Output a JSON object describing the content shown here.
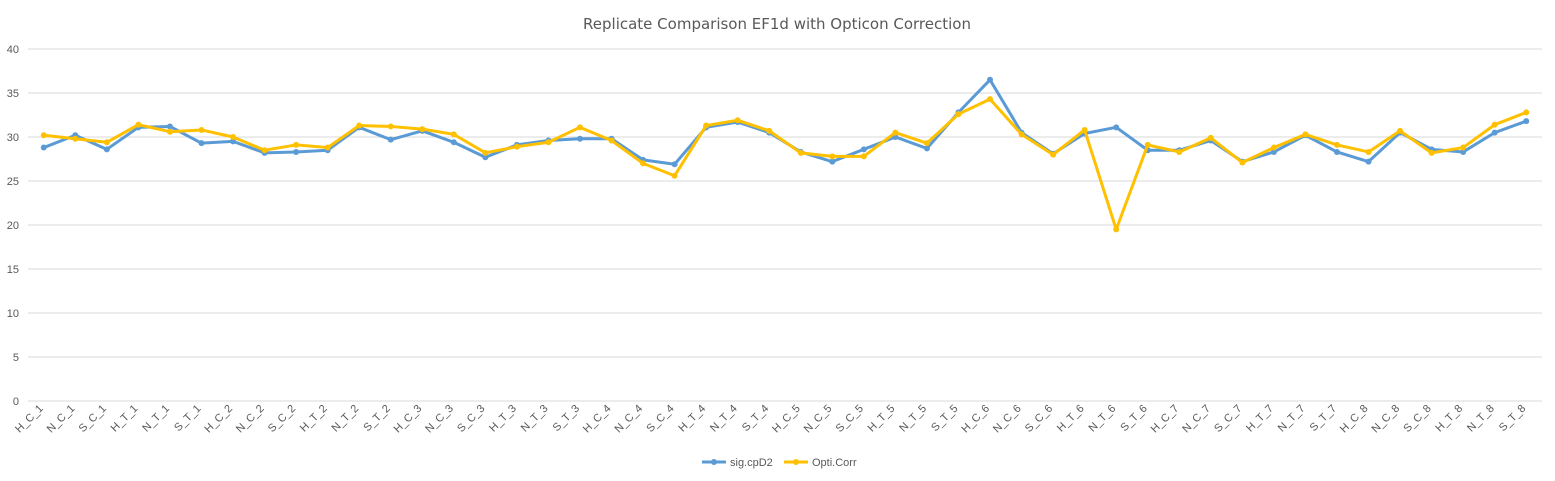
{
  "chart_data": {
    "type": "line",
    "title": "Replicate Comparison EF1d with Opticon Correction",
    "xlabel": "",
    "ylabel": "",
    "ylim": [
      0,
      40
    ],
    "yticks": [
      0,
      5,
      10,
      15,
      20,
      25,
      30,
      35,
      40
    ],
    "grid": true,
    "legend_position": "bottom",
    "categories": [
      "H_C_1",
      "N_C_1",
      "S_C_1",
      "H_T_1",
      "N_T_1",
      "S_T_1",
      "H_C_2",
      "N_C_2",
      "S_C_2",
      "H_T_2",
      "N_T_2",
      "S_T_2",
      "H_C_3",
      "N_C_3",
      "S_C_3",
      "H_T_3",
      "N_T_3",
      "S_T_3",
      "H_C_4",
      "N_C_4",
      "S_C_4",
      "H_T_4",
      "N_T_4",
      "S_T_4",
      "H_C_5",
      "N_C_5",
      "S_C_5",
      "H_T_5",
      "N_T_5",
      "S_T_5",
      "H_C_6",
      "N_C_6",
      "S_C_6",
      "H_T_6",
      "N_T_6",
      "S_T_6",
      "H_C_7",
      "N_C_7",
      "S_C_7",
      "H_T_7",
      "N_T_7",
      "S_T_7",
      "H_C_8",
      "N_C_8",
      "S_C_8",
      "H_T_8",
      "N_T_8",
      "S_T_8"
    ],
    "series": [
      {
        "name": "sig.cpD2",
        "color": "#5b9bd5",
        "values": [
          28.8,
          30.2,
          28.6,
          31.1,
          31.2,
          29.3,
          29.5,
          28.2,
          28.3,
          28.5,
          31.1,
          29.7,
          30.7,
          29.4,
          27.7,
          29.1,
          29.6,
          29.8,
          29.8,
          27.4,
          26.9,
          31.1,
          31.7,
          30.5,
          28.3,
          27.2,
          28.6,
          30.0,
          28.7,
          32.8,
          36.5,
          30.5,
          28.1,
          30.4,
          31.1,
          28.5,
          28.5,
          29.6,
          27.2,
          28.3,
          30.2,
          28.3,
          27.2,
          30.5,
          28.6,
          28.3,
          30.5,
          31.8
        ]
      },
      {
        "name": "Opti.Corr",
        "color": "#ffc000",
        "values": [
          30.2,
          29.8,
          29.4,
          31.4,
          30.6,
          30.8,
          30.0,
          28.5,
          29.1,
          28.8,
          31.3,
          31.2,
          30.9,
          30.3,
          28.2,
          28.9,
          29.4,
          31.1,
          29.6,
          27.0,
          25.6,
          31.3,
          31.9,
          30.7,
          28.2,
          27.8,
          27.8,
          30.5,
          29.3,
          32.6,
          34.3,
          30.3,
          28.0,
          30.8,
          19.5,
          29.1,
          28.3,
          29.9,
          27.1,
          28.8,
          30.3,
          29.1,
          28.3,
          30.7,
          28.2,
          28.8,
          31.4,
          32.8
        ]
      }
    ]
  }
}
